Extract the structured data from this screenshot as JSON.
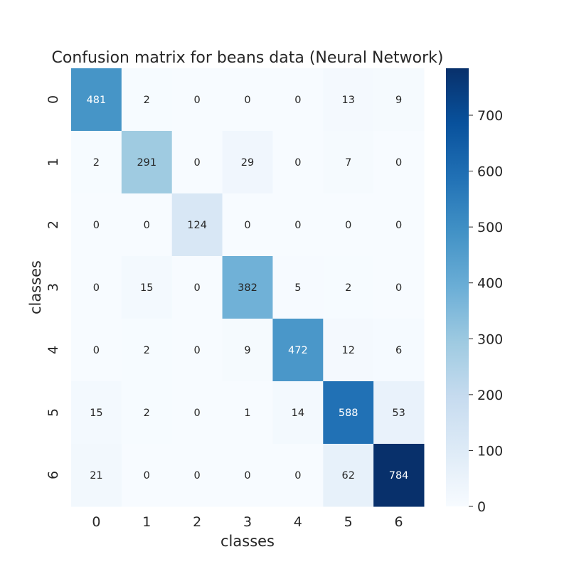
{
  "chart_data": {
    "type": "heatmap",
    "title": "Confusion matrix for beans data (Neural Network)",
    "xlabel": "classes",
    "ylabel": "classes",
    "x_categories": [
      "0",
      "1",
      "2",
      "3",
      "4",
      "5",
      "6"
    ],
    "y_categories": [
      "0",
      "1",
      "2",
      "3",
      "4",
      "5",
      "6"
    ],
    "values": [
      [
        481,
        2,
        0,
        0,
        0,
        13,
        9
      ],
      [
        2,
        291,
        0,
        29,
        0,
        7,
        0
      ],
      [
        0,
        0,
        124,
        0,
        0,
        0,
        0
      ],
      [
        0,
        15,
        0,
        382,
        5,
        2,
        0
      ],
      [
        0,
        2,
        0,
        9,
        472,
        12,
        6
      ],
      [
        15,
        2,
        0,
        1,
        14,
        588,
        53
      ],
      [
        21,
        0,
        0,
        0,
        0,
        62,
        784
      ]
    ],
    "colormap": "Blues",
    "colorbar": {
      "range": [
        0,
        784
      ],
      "ticks": [
        0,
        100,
        200,
        300,
        400,
        500,
        600,
        700
      ]
    },
    "grid": false,
    "colors": {
      "low": "#f7fbff",
      "high": "#08306b",
      "text": "#262626"
    }
  }
}
